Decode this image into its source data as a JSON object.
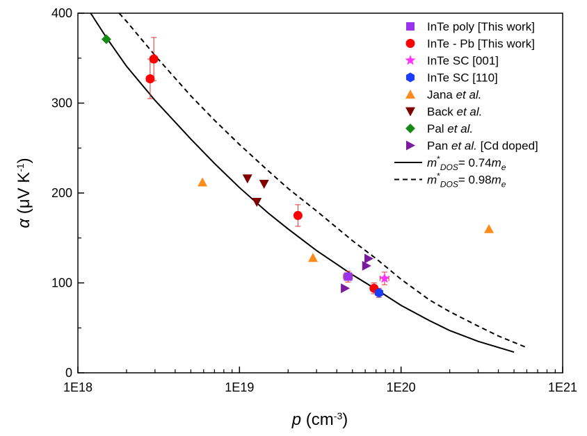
{
  "chart_data": {
    "type": "scatter",
    "title": "",
    "xlabel": {
      "main": "p",
      "unit": " (cm",
      "sup": "-3",
      "close": ")"
    },
    "ylabel": {
      "main": "α",
      "unit": " (μV K",
      "sup": "-1",
      "close": ")"
    },
    "x_scale": "log",
    "xlim": [
      1e+18,
      1e+21
    ],
    "ylim": [
      0,
      400
    ],
    "grid": false,
    "legend_position": "top-right",
    "x_ticks": [
      {
        "value": 1e+18,
        "label": "1E18"
      },
      {
        "value": 1e+19,
        "label": "1E19"
      },
      {
        "value": 1e+20,
        "label": "1E20"
      },
      {
        "value": 1e+21,
        "label": "1E21"
      }
    ],
    "y_ticks": [
      {
        "value": 0,
        "label": "0"
      },
      {
        "value": 100,
        "label": "100"
      },
      {
        "value": 200,
        "label": "200"
      },
      {
        "value": 300,
        "label": "300"
      },
      {
        "value": 400,
        "label": "400"
      }
    ],
    "series": [
      {
        "legend": [
          "InTe poly [This work]"
        ],
        "marker": "square",
        "color": "#9933ee",
        "points": [
          {
            "x": 4.7e+19,
            "y": 107,
            "yerr": 6,
            "xerr": 3e+18
          }
        ]
      },
      {
        "legend": [
          "InTe - Pb [This work]"
        ],
        "marker": "circle",
        "color": "#ff0000",
        "points": [
          {
            "x": 2.8e+18,
            "y": 327,
            "yerr": 22,
            "xerr": 1.5e+17
          },
          {
            "x": 2.95e+18,
            "y": 349,
            "yerr": 24,
            "xerr": 1.5e+17
          },
          {
            "x": 2.3e+19,
            "y": 175,
            "yerr": 12,
            "xerr": 1e+18
          },
          {
            "x": 6.8e+19,
            "y": 94,
            "yerr": 6,
            "xerr": 3e+18
          }
        ]
      },
      {
        "legend": [
          "InTe SC [001]"
        ],
        "marker": "star",
        "color": "#ff33ff",
        "points": [
          {
            "x": 7.9e+19,
            "y": 105,
            "yerr": 7,
            "xerr": 5e+18
          }
        ]
      },
      {
        "legend": [
          "InTe SC [110]"
        ],
        "marker": "hexagon",
        "color": "#1a3cff",
        "points": [
          {
            "x": 7.3e+19,
            "y": 89,
            "yerr": 5,
            "xerr": 3e+18
          }
        ]
      },
      {
        "legend": [
          "Jana ",
          "et al.",
          ""
        ],
        "marker": "triangle-up",
        "color": "#ff8c1a",
        "points": [
          {
            "x": 5.9e+18,
            "y": 212
          },
          {
            "x": 2.85e+19,
            "y": 128
          },
          {
            "x": 3.5e+20,
            "y": 160
          }
        ]
      },
      {
        "legend": [
          "Back ",
          "et al.",
          ""
        ],
        "marker": "triangle-down",
        "color": "#800000",
        "points": [
          {
            "x": 1.12e+19,
            "y": 216
          },
          {
            "x": 1.28e+19,
            "y": 190
          },
          {
            "x": 1.42e+19,
            "y": 210
          }
        ]
      },
      {
        "legend": [
          "Pal ",
          "et al.",
          ""
        ],
        "marker": "diamond",
        "color": "#158a15",
        "points": [
          {
            "x": 1.5e+18,
            "y": 371
          }
        ]
      },
      {
        "legend": [
          "Pan ",
          "et al.",
          " [Cd doped]"
        ],
        "marker": "triangle-right",
        "color": "#7a1a9e",
        "points": [
          {
            "x": 4.5e+19,
            "y": 94
          },
          {
            "x": 6.1e+19,
            "y": 119
          },
          {
            "x": 6.3e+19,
            "y": 127
          }
        ]
      }
    ],
    "curves": [
      {
        "legend": {
          "m": "m",
          "star": "*",
          "sub": "DOS",
          "value": "= 0.74",
          "me": "m",
          "me_sub": "e"
        },
        "style": "solid",
        "color": "#000000",
        "points": [
          [
            1.2e+18,
            400
          ],
          [
            1.5e+18,
            373
          ],
          [
            2e+18,
            341
          ],
          [
            3e+18,
            303
          ],
          [
            5e+18,
            260
          ],
          [
            7e+18,
            233
          ],
          [
            1e+19,
            206
          ],
          [
            1.5e+19,
            178
          ],
          [
            2e+19,
            160
          ],
          [
            3e+19,
            136
          ],
          [
            5e+19,
            109
          ],
          [
            7e+19,
            93
          ],
          [
            1e+20,
            75
          ],
          [
            1.5e+20,
            58
          ],
          [
            2e+20,
            47
          ],
          [
            3e+20,
            35
          ],
          [
            5e+20,
            23
          ]
        ]
      },
      {
        "legend": {
          "m": "m",
          "star": "*",
          "sub": "DOS",
          "value": "= 0.98",
          "me": "m",
          "me_sub": "e"
        },
        "style": "dashed",
        "color": "#000000",
        "points": [
          [
            1.8e+18,
            400
          ],
          [
            2e+18,
            391
          ],
          [
            3e+18,
            353
          ],
          [
            5e+18,
            308
          ],
          [
            7e+18,
            281
          ],
          [
            1e+19,
            254
          ],
          [
            1.5e+19,
            225
          ],
          [
            2e+19,
            205
          ],
          [
            3e+19,
            180
          ],
          [
            5e+19,
            147
          ],
          [
            7e+19,
            127
          ],
          [
            1e+20,
            104
          ],
          [
            1.5e+20,
            81
          ],
          [
            2e+20,
            68
          ],
          [
            3e+20,
            52
          ],
          [
            4e+20,
            41
          ],
          [
            6e+20,
            28
          ]
        ]
      }
    ]
  }
}
